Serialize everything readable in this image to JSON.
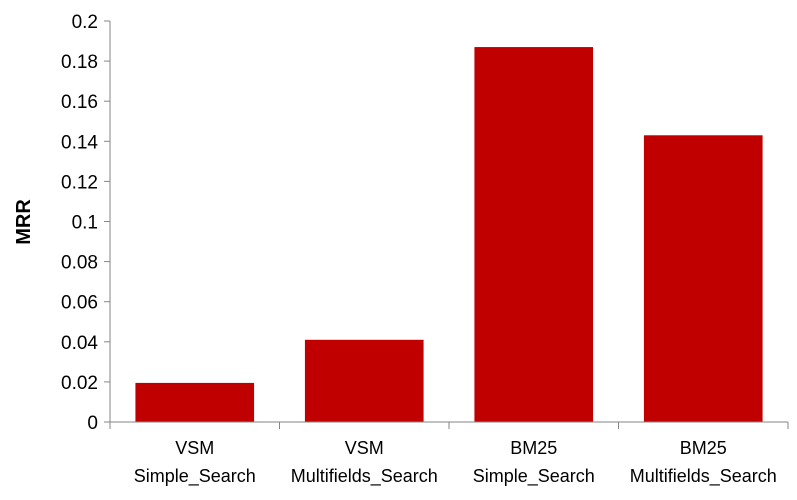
{
  "chart_data": {
    "type": "bar",
    "title": "",
    "xlabel": "",
    "ylabel": "MRR",
    "ylim": [
      0,
      0.2
    ],
    "yticks": [
      "0",
      "0.02",
      "0.04",
      "0.06",
      "0.08",
      "0.1",
      "0.12",
      "0.14",
      "0.16",
      "0.18",
      "0.2"
    ],
    "categories": [
      {
        "line1": "VSM",
        "line2": "Simple_Search"
      },
      {
        "line1": "VSM",
        "line2": "Multifields_Search"
      },
      {
        "line1": "BM25",
        "line2": "Simple_Search"
      },
      {
        "line1": "BM25",
        "line2": "Multifields_Search"
      }
    ],
    "values": [
      0.0195,
      0.041,
      0.187,
      0.143
    ],
    "bar_color": "#c00000",
    "grid": false,
    "legend": "none"
  }
}
